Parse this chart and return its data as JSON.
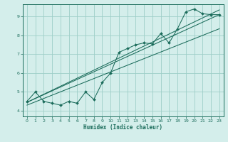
{
  "xlabel": "Humidex (Indice chaleur)",
  "ylabel": "",
  "bg_color": "#d4eeeb",
  "grid_color": "#9ecec8",
  "line_color": "#1a6b5a",
  "xlim": [
    -0.5,
    23.5
  ],
  "ylim": [
    3.7,
    9.65
  ],
  "xticks": [
    0,
    1,
    2,
    3,
    4,
    5,
    6,
    7,
    8,
    9,
    10,
    11,
    12,
    13,
    14,
    15,
    16,
    17,
    18,
    19,
    20,
    21,
    22,
    23
  ],
  "yticks": [
    4,
    5,
    6,
    7,
    8,
    9
  ],
  "data_x": [
    0,
    1,
    2,
    3,
    4,
    5,
    6,
    7,
    8,
    9,
    10,
    11,
    12,
    13,
    14,
    15,
    16,
    17,
    18,
    19,
    20,
    21,
    22,
    23
  ],
  "data_y": [
    4.5,
    5.0,
    4.5,
    4.4,
    4.3,
    4.5,
    4.4,
    5.0,
    4.6,
    5.5,
    6.0,
    7.1,
    7.3,
    7.5,
    7.6,
    7.55,
    8.1,
    7.6,
    8.35,
    9.25,
    9.4,
    9.15,
    9.1,
    9.1
  ],
  "trend1_x": [
    0,
    23
  ],
  "trend1_y": [
    4.45,
    9.1
  ],
  "trend2_x": [
    0,
    23
  ],
  "trend2_y": [
    4.3,
    8.35
  ],
  "trend3_x": [
    0,
    23
  ],
  "trend3_y": [
    4.45,
    9.35
  ]
}
